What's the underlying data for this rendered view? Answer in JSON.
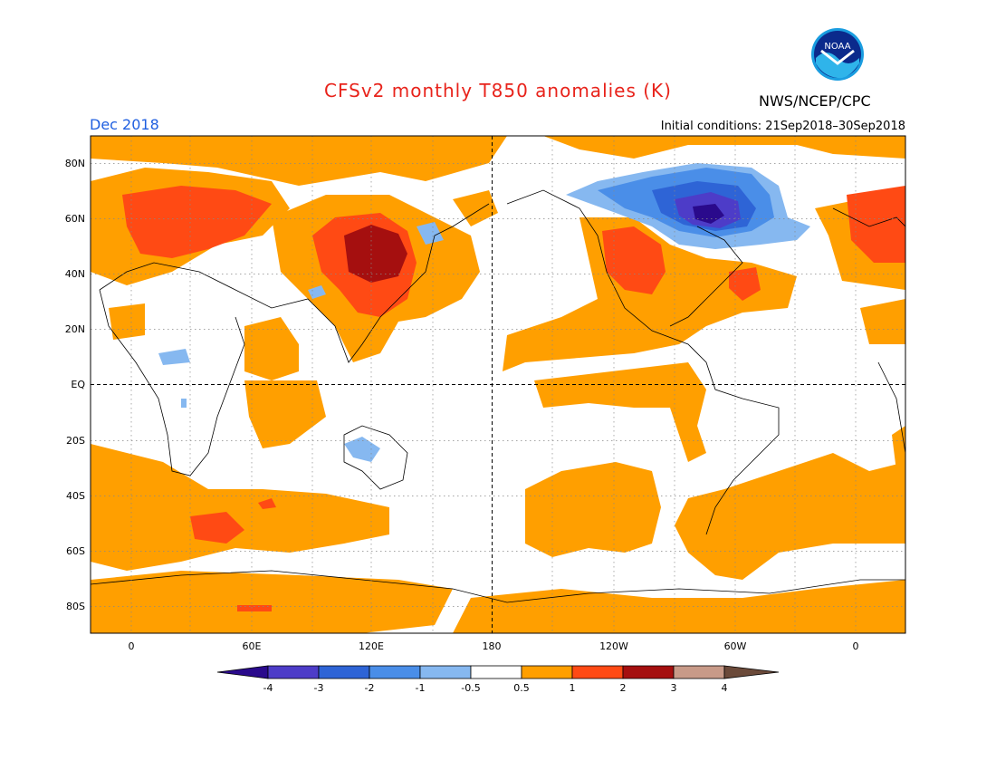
{
  "header": {
    "title": "CFSv2 monthly T850 anomalies (K)",
    "agency": "NWS/NCEP/CPC",
    "month": "Dec 2018",
    "initial_conditions": "Initial conditions: 21Sep2018–30Sep2018"
  },
  "logo": {
    "text": "NOAA",
    "icon": "noaa-logo"
  },
  "axes": {
    "lat_labels": [
      "80N",
      "60N",
      "40N",
      "20N",
      "EQ",
      "20S",
      "40S",
      "60S",
      "80S"
    ],
    "lon_labels": [
      "0",
      "60E",
      "120E",
      "180",
      "120W",
      "60W",
      "0"
    ]
  },
  "colorbar": {
    "labels": [
      "-4",
      "-3",
      "-2",
      "-1",
      "-0.5",
      "0.5",
      "1",
      "2",
      "3",
      "4"
    ],
    "colors": [
      "#2a0a8c",
      "#4d3cc8",
      "#2e64d6",
      "#4a8ee8",
      "#86b8f0",
      "#ffffff",
      "#ff9f00",
      "#ff4a14",
      "#a50f0f",
      "#c89a88",
      "#6b4a3a"
    ]
  }
}
